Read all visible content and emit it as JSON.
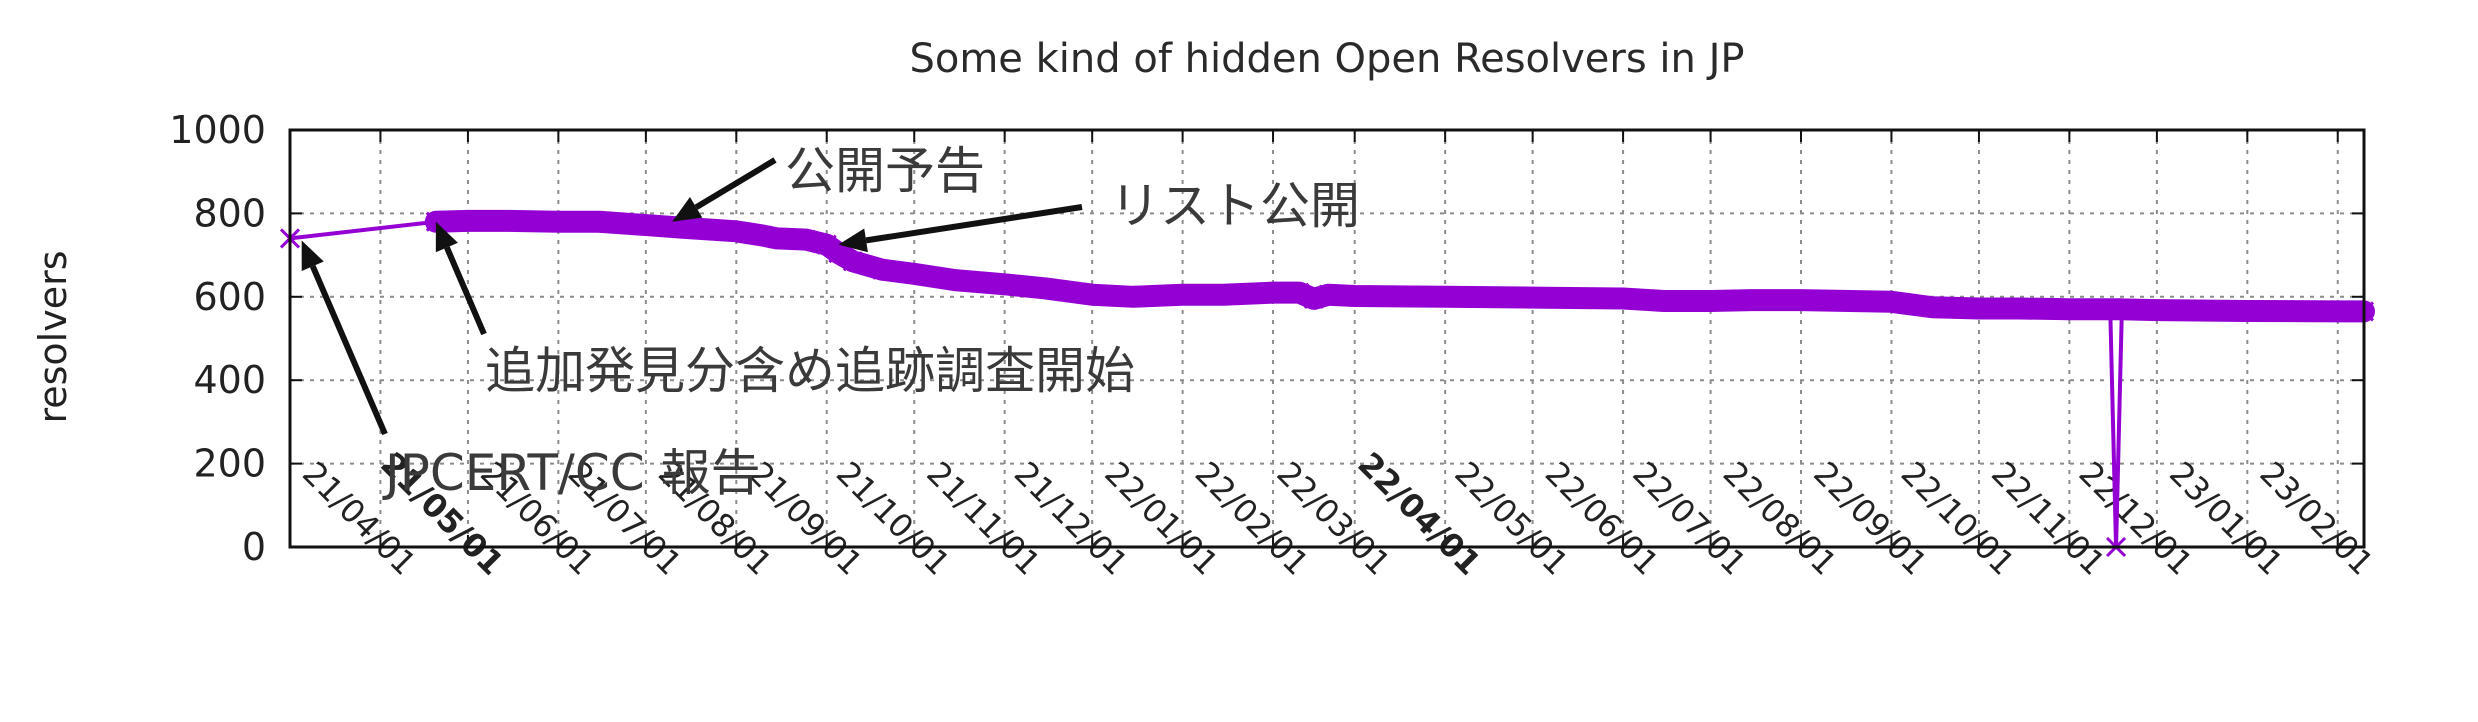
{
  "chart_data": {
    "type": "line",
    "title": "Some kind of hidden Open Resolvers in JP",
    "xlabel": "",
    "ylabel": "resolvers",
    "ylim": [
      0,
      1000
    ],
    "yticks": [
      0,
      200,
      400,
      600,
      800,
      1000
    ],
    "xlim": [
      "2021-03-01",
      "2023-02-10"
    ],
    "xticks": [
      {
        "date": "2021-04-01",
        "label": "21/04/01",
        "bold": false
      },
      {
        "date": "2021-05-01",
        "label": "21/05/01",
        "bold": true
      },
      {
        "date": "2021-06-01",
        "label": "21/06/01",
        "bold": false
      },
      {
        "date": "2021-07-01",
        "label": "21/07/01",
        "bold": false
      },
      {
        "date": "2021-08-01",
        "label": "21/08/01",
        "bold": false
      },
      {
        "date": "2021-09-01",
        "label": "21/09/01",
        "bold": false
      },
      {
        "date": "2021-10-01",
        "label": "21/10/01",
        "bold": false
      },
      {
        "date": "2021-11-01",
        "label": "21/11/01",
        "bold": false
      },
      {
        "date": "2021-12-01",
        "label": "21/12/01",
        "bold": false
      },
      {
        "date": "2022-01-01",
        "label": "22/01/01",
        "bold": false
      },
      {
        "date": "2022-02-01",
        "label": "22/02/01",
        "bold": false
      },
      {
        "date": "2022-03-01",
        "label": "22/03/01",
        "bold": false
      },
      {
        "date": "2022-04-01",
        "label": "22/04/01",
        "bold": true
      },
      {
        "date": "2022-05-01",
        "label": "22/05/01",
        "bold": false
      },
      {
        "date": "2022-06-01",
        "label": "22/06/01",
        "bold": false
      },
      {
        "date": "2022-07-01",
        "label": "22/07/01",
        "bold": false
      },
      {
        "date": "2022-08-01",
        "label": "22/08/01",
        "bold": false
      },
      {
        "date": "2022-09-01",
        "label": "22/09/01",
        "bold": false
      },
      {
        "date": "2022-10-01",
        "label": "22/10/01",
        "bold": false
      },
      {
        "date": "2022-11-01",
        "label": "22/11/01",
        "bold": false
      },
      {
        "date": "2022-12-01",
        "label": "22/12/01",
        "bold": false
      },
      {
        "date": "2023-01-01",
        "label": "23/01/01",
        "bold": false
      },
      {
        "date": "2023-02-01",
        "label": "23/02/01",
        "bold": false
      }
    ],
    "grid": true,
    "series": [
      {
        "color": "#9400d3",
        "marker": "x",
        "points": [
          [
            "2021-03-01",
            740
          ],
          [
            "2021-04-20",
            780
          ],
          [
            "2021-05-01",
            782
          ],
          [
            "2021-05-15",
            782
          ],
          [
            "2021-06-01",
            780
          ],
          [
            "2021-06-15",
            780
          ],
          [
            "2021-07-01",
            772
          ],
          [
            "2021-07-15",
            765
          ],
          [
            "2021-08-01",
            757
          ],
          [
            "2021-08-10",
            747
          ],
          [
            "2021-08-15",
            740
          ],
          [
            "2021-08-25",
            737
          ],
          [
            "2021-09-01",
            725
          ],
          [
            "2021-09-05",
            705
          ],
          [
            "2021-09-10",
            685
          ],
          [
            "2021-09-20",
            665
          ],
          [
            "2021-10-01",
            655
          ],
          [
            "2021-10-15",
            640
          ],
          [
            "2021-11-01",
            630
          ],
          [
            "2021-11-15",
            620
          ],
          [
            "2021-12-01",
            605
          ],
          [
            "2021-12-15",
            600
          ],
          [
            "2022-01-01",
            605
          ],
          [
            "2022-01-15",
            605
          ],
          [
            "2022-02-01",
            610
          ],
          [
            "2022-02-10",
            610
          ],
          [
            "2022-02-15",
            595
          ],
          [
            "2022-02-20",
            605
          ],
          [
            "2022-03-01",
            602
          ],
          [
            "2022-04-01",
            600
          ],
          [
            "2022-05-01",
            598
          ],
          [
            "2022-06-01",
            596
          ],
          [
            "2022-06-15",
            590
          ],
          [
            "2022-07-01",
            590
          ],
          [
            "2022-07-15",
            592
          ],
          [
            "2022-08-01",
            592
          ],
          [
            "2022-09-01",
            588
          ],
          [
            "2022-09-15",
            575
          ],
          [
            "2022-10-01",
            572
          ],
          [
            "2022-10-15",
            572
          ],
          [
            "2022-11-01",
            570
          ],
          [
            "2022-11-15",
            570
          ],
          [
            "2022-11-17",
            0
          ],
          [
            "2022-11-19",
            570
          ],
          [
            "2022-12-01",
            568
          ],
          [
            "2023-01-01",
            566
          ],
          [
            "2023-02-01",
            565
          ],
          [
            "2023-02-10",
            565
          ]
        ]
      }
    ],
    "annotations": [
      {
        "text": "公開予告",
        "date": "2021-07-10",
        "value": 780
      },
      {
        "text": "リスト公開",
        "date": "2021-09-05",
        "value": 725
      },
      {
        "text": "追加発見分含め追跡調査開始",
        "date": "2021-04-20",
        "value": 780
      },
      {
        "text": "JPCERT/CC 報告",
        "date": "2021-03-05",
        "value": 735
      }
    ]
  }
}
